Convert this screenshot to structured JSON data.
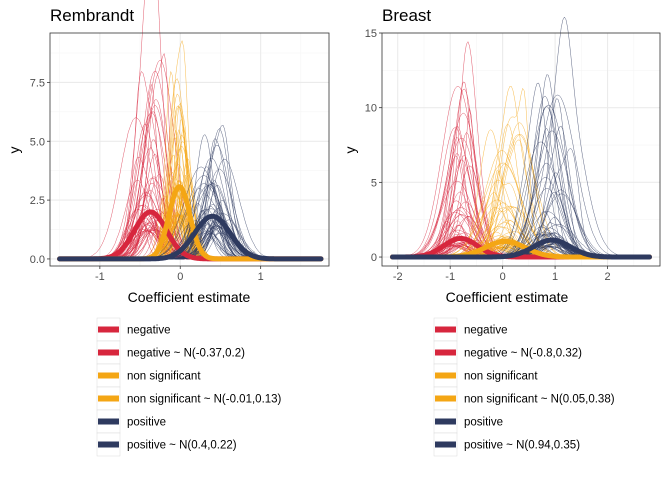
{
  "colors": {
    "negative": "#D7263D",
    "non_significant": "#F4A614",
    "positive": "#2E3A5F",
    "grid_major": "#ebebeb",
    "grid_minor": "#f5f5f5",
    "panel_border": "#333333"
  },
  "chart_data": [
    {
      "type": "line",
      "title": "Rembrandt",
      "xlabel": "Coefficient estimate",
      "ylabel": "y",
      "xlim": [
        -1.62,
        1.85
      ],
      "ylim": [
        -0.3,
        9.6
      ],
      "xticks": [
        -1,
        0,
        1
      ],
      "xtick_labels": [
        "-1",
        "0",
        "1"
      ],
      "yticks": [
        0,
        2.5,
        5,
        7.5
      ],
      "ytick_labels": [
        "0.0",
        "2.5",
        "5.0",
        "7.5"
      ],
      "x_range": [
        -1.5,
        1.75
      ],
      "grid": true,
      "series": [
        {
          "group": "negative",
          "name": "negative",
          "kind": "sample_densities",
          "center": -0.37,
          "spread": 0.2,
          "count": 60,
          "peak_max": 8.8
        },
        {
          "group": "non_significant",
          "name": "non significant",
          "kind": "sample_densities",
          "center": -0.01,
          "spread": 0.13,
          "count": 60,
          "peak_max": 8.4
        },
        {
          "group": "positive",
          "name": "positive",
          "kind": "sample_densities",
          "center": 0.4,
          "spread": 0.22,
          "count": 60,
          "peak_max": 6.1
        },
        {
          "group": "negative",
          "name": "negative ~ N(-0.37,0.2)",
          "kind": "normal_fit",
          "mean": -0.37,
          "sd": 0.2
        },
        {
          "group": "non_significant",
          "name": "non significant ~ N(-0.01,0.13)",
          "kind": "normal_fit",
          "mean": -0.01,
          "sd": 0.13
        },
        {
          "group": "positive",
          "name": "positive ~ N(0.4,0.22)",
          "kind": "normal_fit",
          "mean": 0.4,
          "sd": 0.22
        }
      ],
      "legend": [
        {
          "label": "negative",
          "group": "negative"
        },
        {
          "label": "negative ~ N(-0.37,0.2)",
          "group": "negative"
        },
        {
          "label": "non significant",
          "group": "non_significant"
        },
        {
          "label": "non significant ~ N(-0.01,0.13)",
          "group": "non_significant"
        },
        {
          "label": "positive",
          "group": "positive"
        },
        {
          "label": "positive ~ N(0.4,0.22)",
          "group": "positive"
        }
      ],
      "legend_position": "bottom"
    },
    {
      "type": "line",
      "title": "Breast",
      "xlabel": "Coefficient estimate",
      "ylabel": "y",
      "xlim": [
        -2.3,
        3.0
      ],
      "ylim": [
        -0.6,
        15.0
      ],
      "xticks": [
        -2,
        -1,
        0,
        1,
        2
      ],
      "xtick_labels": [
        "-2",
        "-1",
        "0",
        "1",
        "2"
      ],
      "yticks": [
        0,
        5,
        10,
        15
      ],
      "ytick_labels": [
        "0",
        "5",
        "10",
        "15"
      ],
      "x_range": [
        -2.1,
        2.8
      ],
      "grid": true,
      "series": [
        {
          "group": "negative",
          "name": "negative",
          "kind": "sample_densities",
          "center": -0.8,
          "spread": 0.32,
          "count": 60,
          "peak_max": 12.5
        },
        {
          "group": "non_significant",
          "name": "non significant",
          "kind": "sample_densities",
          "center": 0.05,
          "spread": 0.38,
          "count": 60,
          "peak_max": 9.4
        },
        {
          "group": "positive",
          "name": "positive",
          "kind": "sample_densities",
          "center": 0.94,
          "spread": 0.35,
          "count": 60,
          "peak_max": 11.3
        },
        {
          "group": "negative",
          "name": "negative ~ N(-0.8,0.32)",
          "kind": "normal_fit",
          "mean": -0.8,
          "sd": 0.32
        },
        {
          "group": "non_significant",
          "name": "non significant ~ N(0.05,0.38)",
          "kind": "normal_fit",
          "mean": 0.05,
          "sd": 0.38
        },
        {
          "group": "positive",
          "name": "positive ~ N(0.94,0.35)",
          "kind": "normal_fit",
          "mean": 0.94,
          "sd": 0.35
        }
      ],
      "legend": [
        {
          "label": "negative",
          "group": "negative"
        },
        {
          "label": "negative ~ N(-0.8,0.32)",
          "group": "negative"
        },
        {
          "label": "non significant",
          "group": "non_significant"
        },
        {
          "label": "non significant ~ N(0.05,0.38)",
          "group": "non_significant"
        },
        {
          "label": "positive",
          "group": "positive"
        },
        {
          "label": "positive ~ N(0.94,0.35)",
          "group": "positive"
        }
      ],
      "legend_position": "bottom"
    }
  ]
}
